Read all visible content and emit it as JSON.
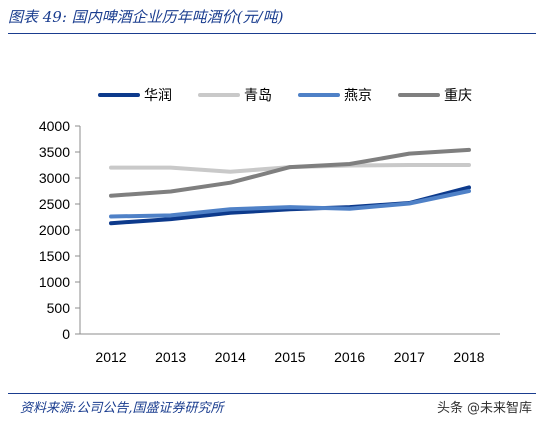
{
  "title": "图表 49:  国内啤酒企业历年吨酒价(元/吨)",
  "source": "资料来源:公司公告,国盛证券研究所",
  "watermark": {
    "prefix": "头条",
    "brand": "@未来智库"
  },
  "chart_data": {
    "type": "line",
    "title": "",
    "xlabel": "",
    "ylabel": "",
    "x": [
      "2012",
      "2013",
      "2014",
      "2015",
      "2016",
      "2017",
      "2018"
    ],
    "ylim": [
      0,
      4000
    ],
    "yticks": [
      0,
      500,
      1000,
      1500,
      2000,
      2500,
      3000,
      3500,
      4000
    ],
    "grid": false,
    "legend_position": "top",
    "series": [
      {
        "name": "华润",
        "color": "#0d3a8c",
        "values": [
          2130,
          2210,
          2330,
          2400,
          2440,
          2520,
          2820
        ]
      },
      {
        "name": "青岛",
        "color": "#c9c9c9",
        "values": [
          3200,
          3200,
          3120,
          3210,
          3240,
          3250,
          3250
        ]
      },
      {
        "name": "燕京",
        "color": "#4f81c7",
        "values": [
          2260,
          2280,
          2400,
          2440,
          2410,
          2510,
          2750
        ]
      },
      {
        "name": "重庆",
        "color": "#7f7f7f",
        "values": [
          2660,
          2740,
          2910,
          3210,
          3270,
          3470,
          3540
        ]
      }
    ]
  }
}
